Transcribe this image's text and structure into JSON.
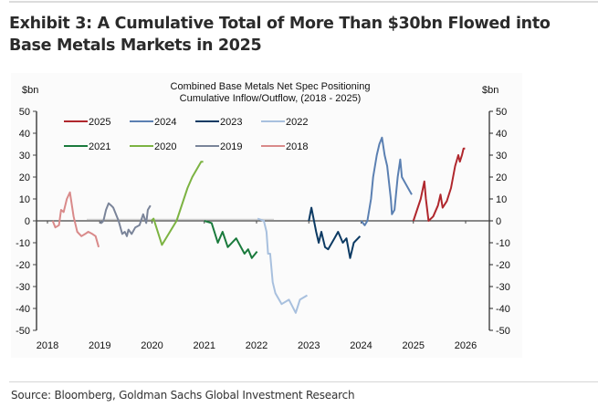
{
  "header": {
    "title": "Exhibit 3: A Cumulative Total of More Than $30bn Flowed into Base Metals Markets in 2025"
  },
  "footer": {
    "source": "Source: Bloomberg, Goldman Sachs Global Investment Research"
  },
  "chart_data": {
    "type": "line",
    "title": "Combined Base Metals Net Spec Positioning",
    "subtitle": "Cumulative Inflow/Outflow, (2018 - 2025)",
    "xlabel": "",
    "ylabel_left": "$bn",
    "ylabel_right": "$bn",
    "xlim": [
      2018,
      2026
    ],
    "ylim": [
      -50,
      50
    ],
    "x_ticks": [
      "2018",
      "2019",
      "2020",
      "2021",
      "2022",
      "2023",
      "2024",
      "2025",
      "2026"
    ],
    "y_ticks": [
      50,
      40,
      30,
      20,
      10,
      0,
      -10,
      -20,
      -30,
      -40,
      -50
    ],
    "grid": false,
    "legend_position": "top-left",
    "series": [
      {
        "name": "2025",
        "color": "#b0272d",
        "points": [
          [
            2025.0,
            0
          ],
          [
            2025.07,
            5
          ],
          [
            2025.14,
            10
          ],
          [
            2025.21,
            18
          ],
          [
            2025.24,
            10
          ],
          [
            2025.29,
            0
          ],
          [
            2025.38,
            2
          ],
          [
            2025.47,
            7
          ],
          [
            2025.52,
            12
          ],
          [
            2025.56,
            6
          ],
          [
            2025.64,
            9
          ],
          [
            2025.72,
            15
          ],
          [
            2025.8,
            25
          ],
          [
            2025.86,
            30
          ],
          [
            2025.89,
            27
          ],
          [
            2025.93,
            30
          ],
          [
            2025.96,
            33
          ],
          [
            2025.99,
            33
          ]
        ]
      },
      {
        "name": "2024",
        "color": "#5b80b2",
        "points": [
          [
            2024.0,
            0
          ],
          [
            2024.07,
            -2
          ],
          [
            2024.12,
            0
          ],
          [
            2024.19,
            10
          ],
          [
            2024.23,
            20
          ],
          [
            2024.3,
            30
          ],
          [
            2024.35,
            35
          ],
          [
            2024.4,
            38
          ],
          [
            2024.45,
            30
          ],
          [
            2024.5,
            25
          ],
          [
            2024.57,
            10
          ],
          [
            2024.59,
            3
          ],
          [
            2024.64,
            5
          ],
          [
            2024.7,
            20
          ],
          [
            2024.75,
            28
          ],
          [
            2024.78,
            20
          ],
          [
            2024.85,
            17
          ],
          [
            2024.97,
            12
          ]
        ]
      },
      {
        "name": "2023",
        "color": "#0c3a63",
        "points": [
          [
            2023.0,
            0
          ],
          [
            2023.05,
            6
          ],
          [
            2023.14,
            -5
          ],
          [
            2023.19,
            -10
          ],
          [
            2023.24,
            -5
          ],
          [
            2023.31,
            -12
          ],
          [
            2023.37,
            -13
          ],
          [
            2023.49,
            -8
          ],
          [
            2023.56,
            -5
          ],
          [
            2023.65,
            -10
          ],
          [
            2023.72,
            -8
          ],
          [
            2023.79,
            -17
          ],
          [
            2023.86,
            -10
          ],
          [
            2023.98,
            -7
          ]
        ]
      },
      {
        "name": "2022",
        "color": "#a8c0de",
        "points": [
          [
            2022.02,
            1
          ],
          [
            2022.14,
            0
          ],
          [
            2022.19,
            -5
          ],
          [
            2022.22,
            -15
          ],
          [
            2022.26,
            -15
          ],
          [
            2022.31,
            -28
          ],
          [
            2022.36,
            -33
          ],
          [
            2022.48,
            -38
          ],
          [
            2022.62,
            -36
          ],
          [
            2022.75,
            -42
          ],
          [
            2022.83,
            -36
          ],
          [
            2022.97,
            -34
          ]
        ]
      },
      {
        "name": "2021",
        "color": "#1a7a3c",
        "points": [
          [
            2021.0,
            0
          ],
          [
            2021.14,
            -1
          ],
          [
            2021.26,
            -10
          ],
          [
            2021.35,
            -5
          ],
          [
            2021.45,
            -12
          ],
          [
            2021.61,
            -8
          ],
          [
            2021.77,
            -15
          ],
          [
            2021.84,
            -13
          ],
          [
            2021.91,
            -17
          ],
          [
            2022.01,
            -14
          ]
        ]
      },
      {
        "name": "2020",
        "color": "#7cb342",
        "points": [
          [
            2019.99,
            0
          ],
          [
            2020.03,
            1
          ],
          [
            2020.19,
            -11
          ],
          [
            2020.47,
            0
          ],
          [
            2020.68,
            15
          ],
          [
            2020.77,
            20
          ],
          [
            2020.94,
            27
          ],
          [
            2020.98,
            27
          ]
        ]
      },
      {
        "name": "2019",
        "color": "#7a8499",
        "points": [
          [
            2019.01,
            0
          ],
          [
            2019.03,
            -1
          ],
          [
            2019.07,
            0
          ],
          [
            2019.12,
            5
          ],
          [
            2019.17,
            8
          ],
          [
            2019.22,
            7
          ],
          [
            2019.26,
            6
          ],
          [
            2019.36,
            0
          ],
          [
            2019.43,
            -6
          ],
          [
            2019.48,
            -5
          ],
          [
            2019.52,
            -7
          ],
          [
            2019.55,
            -4
          ],
          [
            2019.61,
            -6
          ],
          [
            2019.68,
            -3
          ],
          [
            2019.76,
            -2
          ],
          [
            2019.83,
            3
          ],
          [
            2019.89,
            -1
          ],
          [
            2019.92,
            5
          ],
          [
            2019.97,
            7
          ]
        ]
      },
      {
        "name": "2018",
        "color": "#d98a8a",
        "points": [
          [
            2018.1,
            0
          ],
          [
            2018.15,
            -3
          ],
          [
            2018.22,
            -2
          ],
          [
            2018.26,
            5
          ],
          [
            2018.31,
            4
          ],
          [
            2018.37,
            10
          ],
          [
            2018.43,
            13
          ],
          [
            2018.5,
            2
          ],
          [
            2018.57,
            -5
          ],
          [
            2018.65,
            -7
          ],
          [
            2018.72,
            -6
          ],
          [
            2018.78,
            -5
          ],
          [
            2018.86,
            -6
          ],
          [
            2018.92,
            -7
          ],
          [
            2018.98,
            -12
          ]
        ]
      }
    ]
  }
}
